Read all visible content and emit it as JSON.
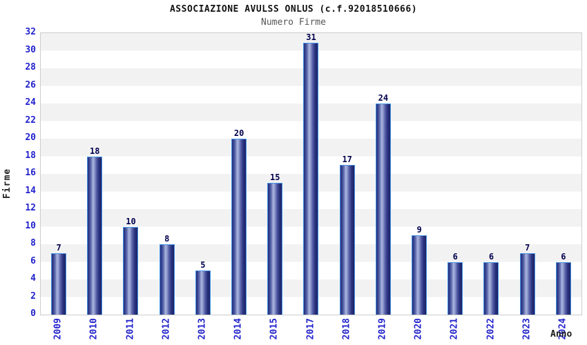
{
  "chart_data": {
    "type": "bar",
    "title": "ASSOCIAZIONE AVULSS ONLUS (c.f.92018510666)",
    "subtitle": "Numero Firme",
    "xlabel": "Anno",
    "ylabel": "Firme",
    "categories": [
      "2009",
      "2010",
      "2011",
      "2012",
      "2013",
      "2014",
      "2015",
      "2017",
      "2018",
      "2019",
      "2020",
      "2021",
      "2022",
      "2023",
      "2024"
    ],
    "values": [
      7,
      18,
      10,
      8,
      5,
      20,
      15,
      31,
      17,
      24,
      9,
      6,
      6,
      7,
      6
    ],
    "ylim": [
      0,
      32
    ],
    "ytick_step": 2,
    "yticks": [
      0,
      2,
      4,
      6,
      8,
      10,
      12,
      14,
      16,
      18,
      20,
      22,
      24,
      26,
      28,
      30,
      32
    ],
    "bar_value_labels_visible": true,
    "legend": "none",
    "grid": "alternating horizontal gray/white bands every 2 units, gray band at top"
  },
  "colors": {
    "axis_text": "#2222cc",
    "value_text": "#00004d",
    "title_text": "#111111",
    "subtitle_text": "#555555",
    "band_gray": "#f2f2f2",
    "plot_border": "#cccccc",
    "bar_border": "#4494e4",
    "bar_dark": "#242e7e",
    "bar_light": "#aab4de"
  }
}
